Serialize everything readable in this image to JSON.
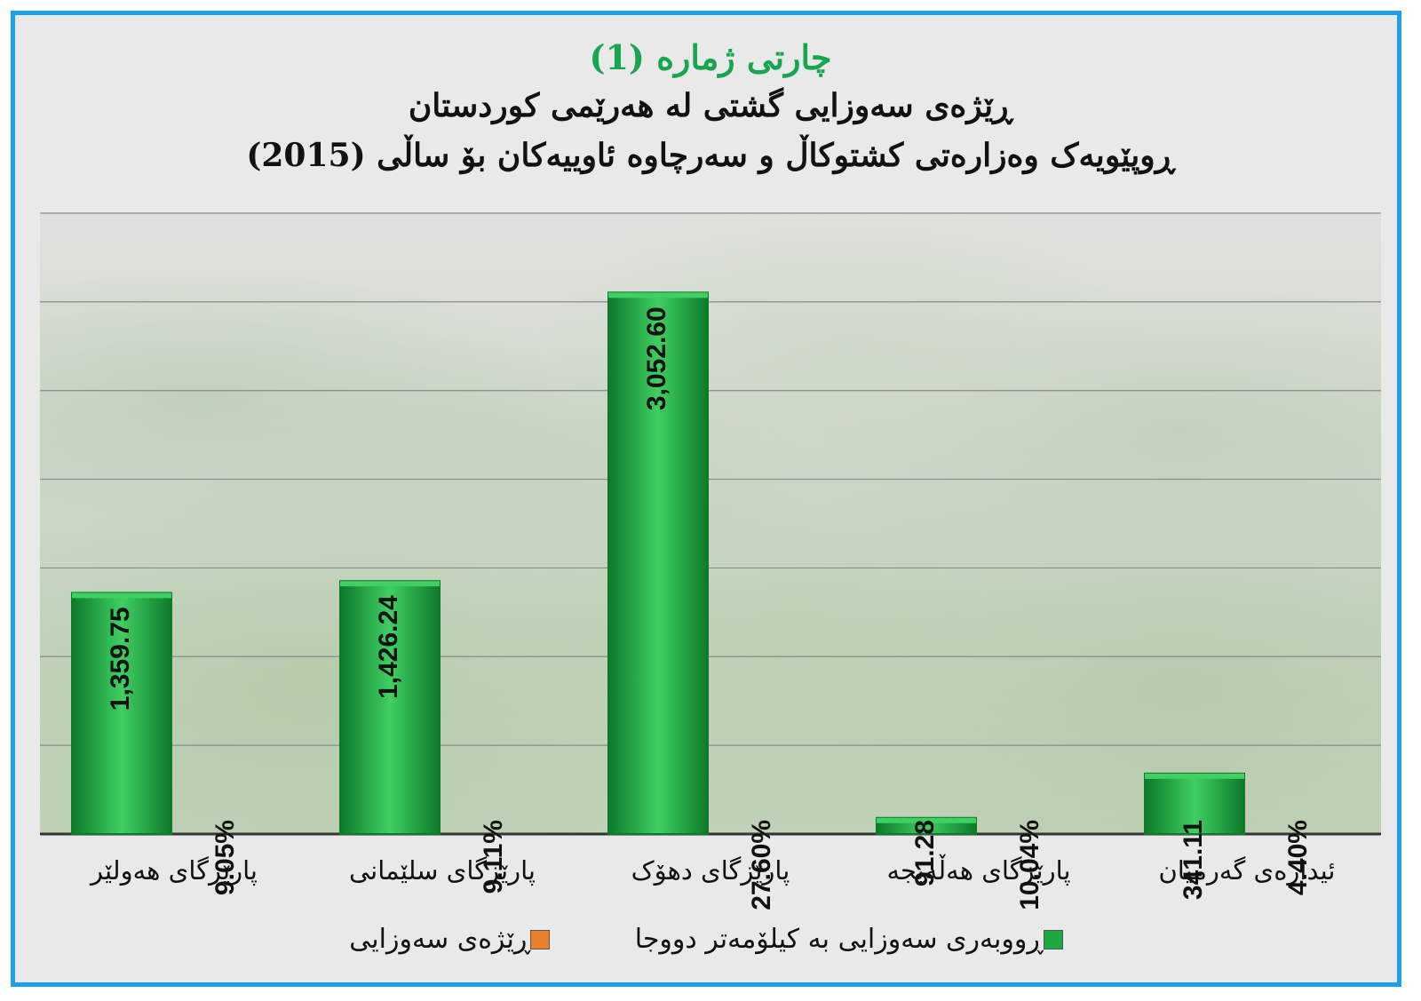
{
  "titles": {
    "number": "چارتی ژمارە (1)",
    "main": "ڕێژەی سەوزایی گشتی لە هەرێمی کوردستان",
    "sub": "ڕوپێویەک وەزارەتی کشتوکاڵ و سەرچاوە ئاوییەکان بۆ ساڵی (2015)"
  },
  "legend": {
    "area": "ڕووبەری سەوزایی بە کیلۆمەتر دووجا",
    "ratio": "ڕێژەی سەوزایی"
  },
  "colors": {
    "bar": "#1aaa3f",
    "bar_light": "#3fcf62",
    "bar_dark": "#0d7a2a",
    "ratio_swatch": "#e87f2c",
    "frame": "#1ea0e6",
    "title_green": "#17a54f"
  },
  "chart_data": {
    "type": "bar",
    "categories": [
      "پارێزگای هەولێر",
      "پارێزگای سلێمانی",
      "پارێزگای دهۆک",
      "پارێزگای هەڵەبجە",
      "ئیدارەی گەرمیان"
    ],
    "series": [
      {
        "name": "ڕووبەری سەوزایی بە کیلۆمەتر دووجا",
        "values": [
          1359.75,
          1426.24,
          3052.6,
          91.28,
          341.11
        ],
        "labels": [
          "1,359.75",
          "1,426.24",
          "3,052.60",
          "91.28",
          "341.11"
        ]
      },
      {
        "name": "ڕێژەی سەوزایی",
        "values": [
          9.05,
          9.11,
          27.6,
          10.04,
          4.4
        ],
        "labels": [
          "9.05%",
          "9.11%",
          "27.60%",
          "10.04%",
          "4.40%"
        ]
      }
    ],
    "ylim": [
      0,
      3500
    ],
    "grid": true,
    "legend_position": "bottom"
  }
}
